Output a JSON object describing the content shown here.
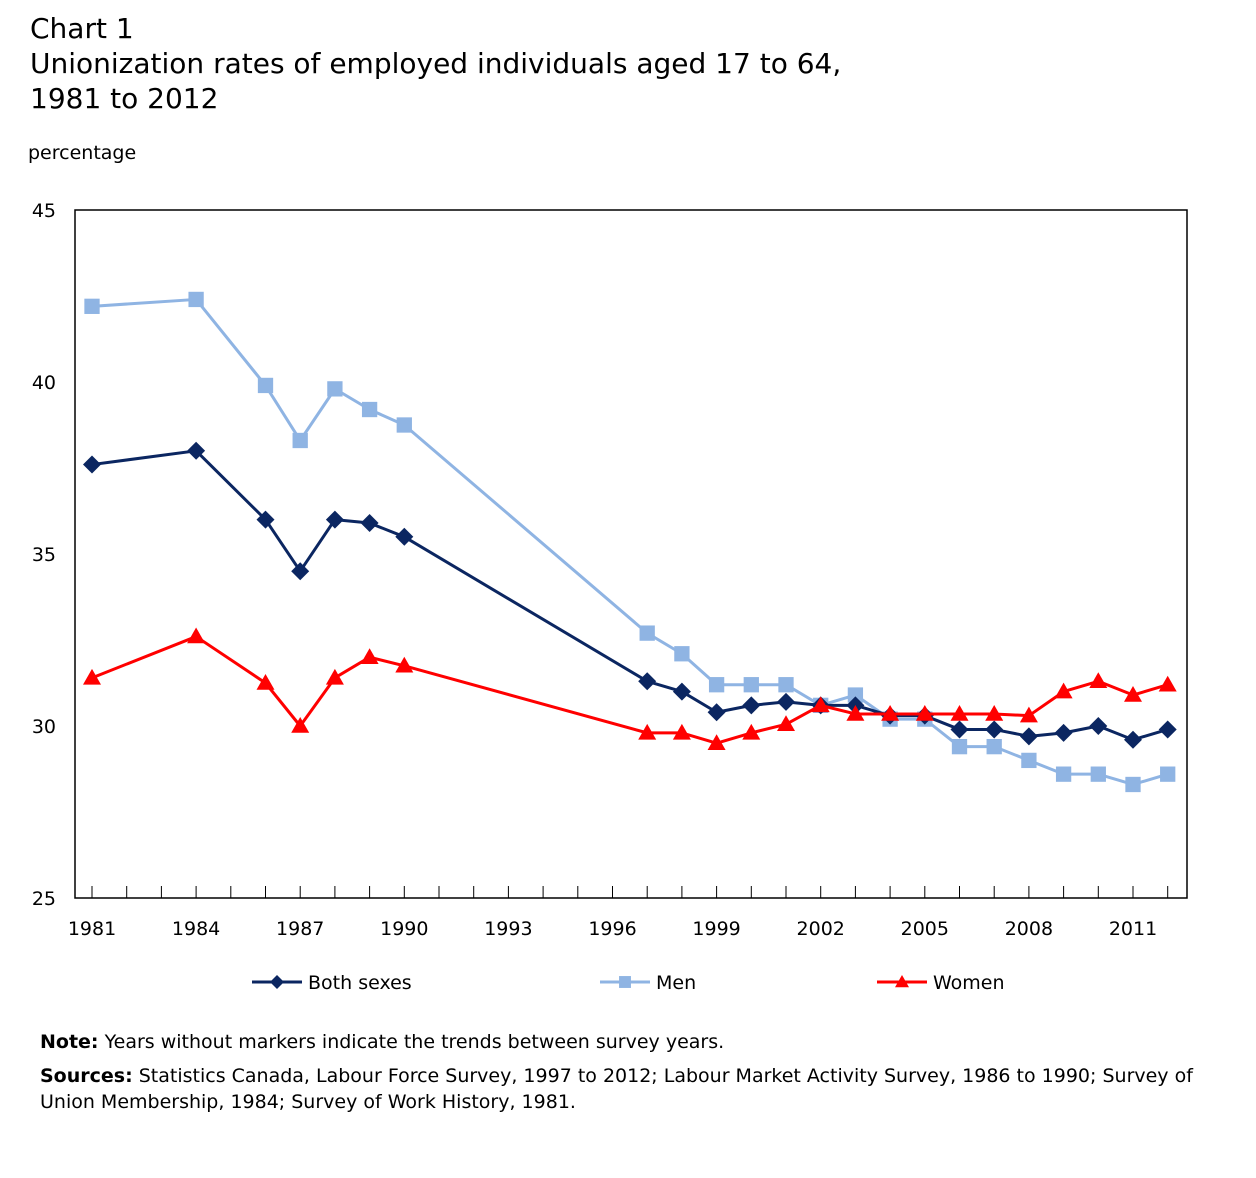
{
  "chart_data": {
    "type": "line",
    "title_line1": "Chart 1",
    "title_line2": "Unionization rates of employed individuals aged 17 to 64,",
    "title_line3": "1981 to 2012",
    "ylabel": "percentage",
    "xlabel": "",
    "ylim": [
      25,
      45
    ],
    "yticks": [
      25,
      30,
      35,
      40,
      45
    ],
    "xlim": [
      1980.5,
      2012.6
    ],
    "xticks": [
      1981,
      1984,
      1987,
      1990,
      1993,
      1996,
      1999,
      2002,
      2005,
      2008,
      2011
    ],
    "grid": false,
    "legend_position": "bottom",
    "x": [
      1981,
      1984,
      1986,
      1987,
      1988,
      1989,
      1990,
      1997,
      1998,
      1999,
      2000,
      2001,
      2002,
      2003,
      2004,
      2005,
      2006,
      2007,
      2008,
      2009,
      2010,
      2011,
      2012
    ],
    "series": [
      {
        "name": "Both sexes",
        "color": "#0b2661",
        "marker": "diamond",
        "values": [
          37.6,
          38.0,
          36.0,
          34.5,
          36.0,
          35.9,
          35.5,
          31.3,
          31.0,
          30.4,
          30.6,
          30.7,
          30.6,
          30.6,
          30.3,
          30.3,
          29.9,
          29.9,
          29.7,
          29.8,
          30.0,
          29.6,
          29.9
        ]
      },
      {
        "name": "Men",
        "color": "#8fb4e3",
        "marker": "square",
        "values": [
          42.2,
          42.4,
          39.9,
          38.3,
          39.8,
          39.2,
          38.75,
          32.7,
          32.1,
          31.2,
          31.2,
          31.2,
          30.6,
          30.9,
          30.2,
          30.2,
          29.4,
          29.4,
          29.0,
          28.6,
          28.6,
          28.3,
          28.6
        ]
      },
      {
        "name": "Women",
        "color": "#ff0000",
        "marker": "triangle",
        "values": [
          31.4,
          32.6,
          31.25,
          30.0,
          31.4,
          32.0,
          31.75,
          29.8,
          29.8,
          29.5,
          29.8,
          30.05,
          30.6,
          30.35,
          30.35,
          30.35,
          30.35,
          30.35,
          30.3,
          31.0,
          31.3,
          30.9,
          31.2
        ]
      }
    ]
  },
  "notes": {
    "note_label": "Note:",
    "note_text": " Years without markers indicate the trends between survey years.",
    "sources_label": "Sources:",
    "sources_text": " Statistics Canada, Labour Force Survey, 1997 to 2012; Labour Market Activity Survey, 1986 to 1990; Survey of Union Membership, 1984; Survey of Work History, 1981."
  }
}
